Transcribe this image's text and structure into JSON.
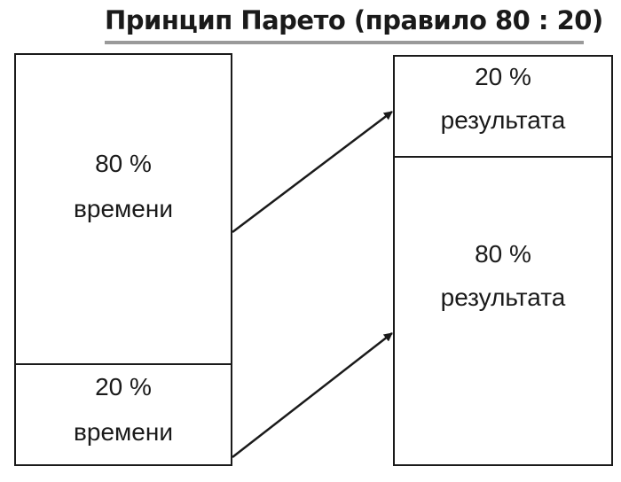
{
  "title": "Принцип Парето (правило 80 : 20)",
  "left_column": {
    "top_section": {
      "percent": "80 %",
      "label": "времени"
    },
    "bottom_section": {
      "percent": "20 %",
      "label": "времени"
    }
  },
  "right_column": {
    "top_section": {
      "percent": "20 %",
      "label": "результата"
    },
    "bottom_section": {
      "percent": "80 %",
      "label": "результата"
    }
  }
}
